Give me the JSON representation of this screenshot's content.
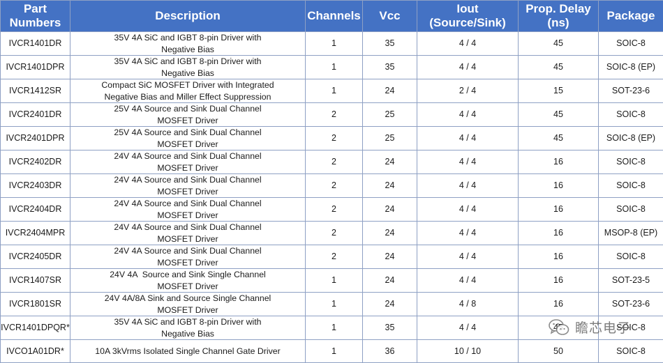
{
  "table": {
    "headers": [
      "Part Numbers",
      "Description",
      "Channels",
      "Vcc",
      "Iout (Source/Sink)",
      "Prop. Delay (ns)",
      "Package"
    ],
    "header_lines": [
      [
        "Part Numbers"
      ],
      [
        "Description"
      ],
      [
        "Channels"
      ],
      [
        "Vcc"
      ],
      [
        "Iout",
        "(Source/Sink)"
      ],
      [
        "Prop. Delay",
        "(ns)"
      ],
      [
        "Package"
      ]
    ],
    "rows": [
      {
        "part": "IVCR1401DR",
        "desc": [
          "35V 4A SiC and IGBT 8-pin Driver with",
          "Negative Bias"
        ],
        "channels": "1",
        "vcc": "35",
        "iout": "4 / 4",
        "delay": "45",
        "package": "SOIC-8"
      },
      {
        "part": "IVCR1401DPR",
        "desc": [
          "35V 4A SiC and IGBT 8-pin Driver with",
          "Negative Bias"
        ],
        "channels": "1",
        "vcc": "35",
        "iout": "4 / 4",
        "delay": "45",
        "package": "SOIC-8 (EP)"
      },
      {
        "part": "IVCR1412SR",
        "desc": [
          "Compact SiC MOSFET Driver with Integrated",
          "Negative Bias and Miller Effect Suppression"
        ],
        "channels": "1",
        "vcc": "24",
        "iout": "2 / 4",
        "delay": "15",
        "package": "SOT-23-6"
      },
      {
        "part": "IVCR2401DR",
        "desc": [
          "25V 4A Source and Sink Dual Channel",
          "MOSFET Driver"
        ],
        "channels": "2",
        "vcc": "25",
        "iout": "4 / 4",
        "delay": "45",
        "package": "SOIC-8"
      },
      {
        "part": "IVCR2401DPR",
        "desc": [
          "25V 4A Source and Sink Dual Channel",
          "MOSFET Driver"
        ],
        "channels": "2",
        "vcc": "25",
        "iout": "4 / 4",
        "delay": "45",
        "package": "SOIC-8 (EP)"
      },
      {
        "part": "IVCR2402DR",
        "desc": [
          "24V 4A Source and Sink Dual Channel",
          "MOSFET Driver"
        ],
        "channels": "2",
        "vcc": "24",
        "iout": "4 / 4",
        "delay": "16",
        "package": "SOIC-8"
      },
      {
        "part": "IVCR2403DR",
        "desc": [
          "24V 4A Source and Sink Dual Channel",
          "MOSFET Driver"
        ],
        "channels": "2",
        "vcc": "24",
        "iout": "4 / 4",
        "delay": "16",
        "package": "SOIC-8"
      },
      {
        "part": "IVCR2404DR",
        "desc": [
          "24V 4A Source and Sink Dual Channel",
          "MOSFET Driver"
        ],
        "channels": "2",
        "vcc": "24",
        "iout": "4 / 4",
        "delay": "16",
        "package": "SOIC-8"
      },
      {
        "part": "IVCR2404MPR",
        "desc": [
          "24V 4A Source and Sink Dual Channel",
          "MOSFET Driver"
        ],
        "channels": "2",
        "vcc": "24",
        "iout": "4 / 4",
        "delay": "16",
        "package": "MSOP-8 (EP)"
      },
      {
        "part": "IVCR2405DR",
        "desc": [
          "24V 4A Source and Sink Dual Channel",
          "MOSFET Driver"
        ],
        "channels": "2",
        "vcc": "24",
        "iout": "4 / 4",
        "delay": "16",
        "package": "SOIC-8"
      },
      {
        "part": "IVCR1407SR",
        "desc": [
          "24V 4A  Source and Sink Single Channel",
          "MOSFET Driver"
        ],
        "channels": "1",
        "vcc": "24",
        "iout": "4 / 4",
        "delay": "16",
        "package": "SOT-23-5"
      },
      {
        "part": "IVCR1801SR",
        "desc": [
          "24V 4A/8A Sink and Source Single Channel",
          "MOSFET Driver"
        ],
        "channels": "1",
        "vcc": "24",
        "iout": "4 / 8",
        "delay": "16",
        "package": "SOT-23-6"
      },
      {
        "part": "IVCR1401DPQR*",
        "desc": [
          "35V 4A SiC and IGBT 8-pin Driver with",
          "Negative Bias"
        ],
        "channels": "1",
        "vcc": "35",
        "iout": "4 / 4",
        "delay": "45",
        "package": "SOIC-8"
      },
      {
        "part": "IVCO1A01DR*",
        "desc": [
          "10A 3kVrms Isolated Single Channel Gate Driver"
        ],
        "channels": "1",
        "vcc": "36",
        "iout": "10 / 10",
        "delay": "50",
        "package": "SOIC-8"
      }
    ]
  },
  "watermark": {
    "text": "瞻芯电子",
    "icon": "wechat-icon"
  },
  "colors": {
    "header_bg": "#4472c4",
    "header_text": "#ffffff",
    "border": "#8ea0c4",
    "cell_text": "#1a1a1a"
  }
}
